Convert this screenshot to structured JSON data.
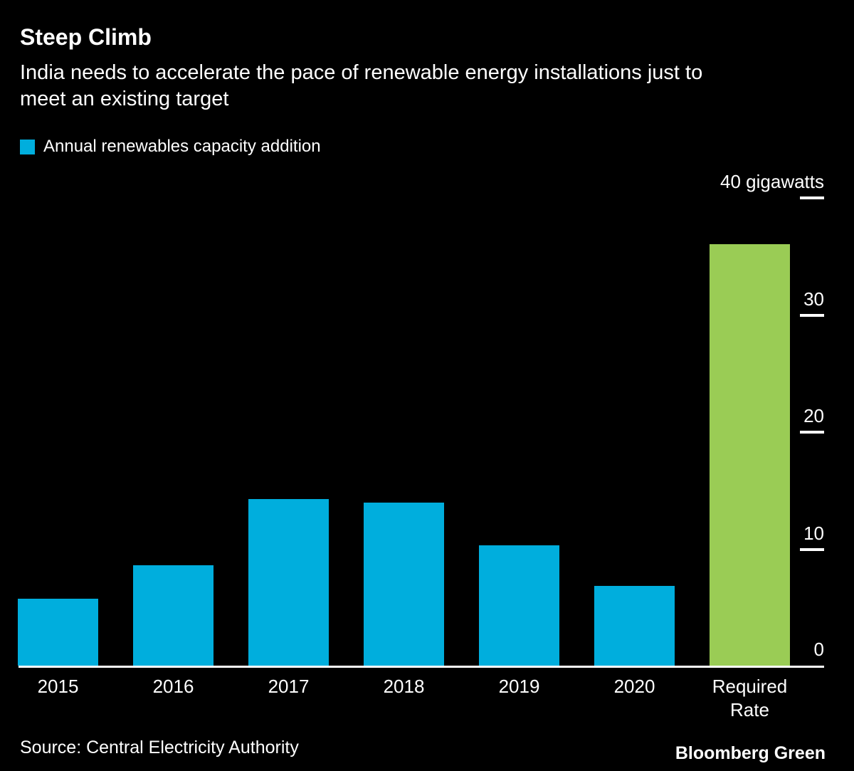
{
  "header": {
    "title": "Steep Climb",
    "subtitle": "India needs to accelerate the pace of renewable energy installations just to meet an existing target",
    "subtitle_line1": "India needs to accelerate the pace of renewable energy installations just to",
    "subtitle_line2": "meet an existing target"
  },
  "legend": {
    "label": "Annual renewables capacity addition",
    "swatch_color": "#00aedd"
  },
  "footer": {
    "source": "Source: Central Electricity Authority",
    "brand": "Bloomberg Green"
  },
  "colors": {
    "background": "#000000",
    "text": "#ffffff",
    "renewables_blue": "#00aedd",
    "required_green": "#9acc55"
  },
  "chart_data": {
    "type": "bar",
    "title": "Steep Climb",
    "series_name": "Annual renewables capacity addition",
    "unit": "gigawatts",
    "categories": [
      "2015",
      "2016",
      "2017",
      "2018",
      "2019",
      "2020",
      "Required Rate"
    ],
    "values": [
      5.7,
      8.6,
      14.2,
      13.9,
      10.3,
      6.8,
      36
    ],
    "bar_colors": [
      "#00aedd",
      "#00aedd",
      "#00aedd",
      "#00aedd",
      "#00aedd",
      "#00aedd",
      "#9acc55"
    ],
    "y_ticks": [
      0,
      10,
      20,
      30,
      40
    ],
    "y_tick_top_label": "40 gigawatts",
    "ylim": [
      0,
      40
    ],
    "axis_side": "right",
    "grid": false,
    "xlabel": "",
    "ylabel": "gigawatts"
  }
}
